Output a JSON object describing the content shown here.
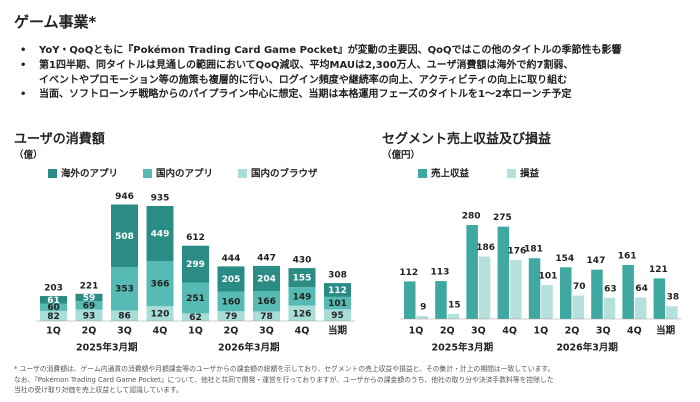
{
  "page": {
    "title": "ゲーム事業*",
    "bullets": [
      "YoY・QoQともに『Pokémon Trading Card Game Pocket』が変動の主要因、QoQではこの他のタイトルの季節性も影響",
      "第1四半期、同タイトルは見通しの範囲においてQoQ減収、平均MAUは2,300万人、ユーザ消費額は海外で約7割弱、\nイベントやプロモーション等の施策も複層的に行い、ログイン頻度や継続率の向上、アクティビティの向上に取り組む",
      "当面、ソフトローンチ戦略からのパイプライン中心に想定、当期は本格運用フェーズのタイトルを1〜2本ローンチ予定"
    ],
    "bullet_mark": "•",
    "footnote": "* ユーザの消費額は、ゲーム内通貨の消費額や月額課金等のユーザからの課金額の総額を示しており、セグメントの売上収益や損益と、その集計・計上の期間は一致しています。\nなお、『Pokémon Trading Card Game Pocket』について、他社と共同で開発・運営を行っておりますが、ユーザからの課金額のうち、他社の取り分や決済手数料等を控除した\n当社の受け取り対価を売上収益として認識しています。"
  },
  "colors": {
    "overseas_app": "#2b8c85",
    "domestic_app": "#56bbb4",
    "browser": "#a9ddd8",
    "revenue": "#3fa8a0",
    "profit": "#b5e0dc"
  },
  "chart_data": [
    {
      "type": "bar",
      "stacked": true,
      "title": "ユーザの消費額",
      "unit": "（億）",
      "categories": [
        "1Q",
        "2Q",
        "3Q",
        "4Q",
        "1Q",
        "2Q",
        "3Q",
        "4Q",
        "当期"
      ],
      "period_labels": [
        {
          "label": "2025年3月期",
          "categories": [
            "1Q",
            "2Q",
            "3Q",
            "4Q"
          ]
        },
        {
          "label": "2026年3月期",
          "categories": [
            "1Q",
            "2Q",
            "3Q",
            "4Q"
          ]
        }
      ],
      "series": [
        {
          "name": "国内のブラウザ",
          "values": [
            82,
            93,
            86,
            120,
            62,
            79,
            78,
            126,
            95
          ]
        },
        {
          "name": "国内のアプリ",
          "values": [
            60,
            69,
            353,
            366,
            251,
            160,
            166,
            149,
            101
          ]
        },
        {
          "name": "海外のアプリ",
          "values": [
            61,
            59,
            508,
            449,
            299,
            205,
            204,
            155,
            112
          ]
        }
      ],
      "totals": [
        203,
        221,
        946,
        935,
        612,
        444,
        447,
        430,
        308
      ],
      "legend_order": [
        "海外のアプリ",
        "国内のアプリ",
        "国内のブラウザ"
      ],
      "legend_position": "top",
      "ylim": [
        0,
        1000
      ],
      "grid": false
    },
    {
      "type": "bar",
      "title": "セグメント売上収益及び損益",
      "unit": "（億円）",
      "categories": [
        "1Q",
        "2Q",
        "3Q",
        "4Q",
        "1Q",
        "2Q",
        "3Q",
        "4Q",
        "当期"
      ],
      "period_labels": [
        {
          "label": "2025年3月期",
          "categories": [
            "1Q",
            "2Q",
            "3Q",
            "4Q"
          ]
        },
        {
          "label": "2026年3月期",
          "categories": [
            "1Q",
            "2Q",
            "3Q",
            "4Q"
          ]
        }
      ],
      "series": [
        {
          "name": "売上収益",
          "values": [
            112,
            113,
            280,
            275,
            181,
            154,
            147,
            161,
            121
          ]
        },
        {
          "name": "損益",
          "values": [
            9,
            15,
            186,
            176,
            101,
            70,
            63,
            64,
            38
          ]
        }
      ],
      "legend_position": "top",
      "ylim": [
        0,
        300
      ],
      "grid": false
    }
  ]
}
